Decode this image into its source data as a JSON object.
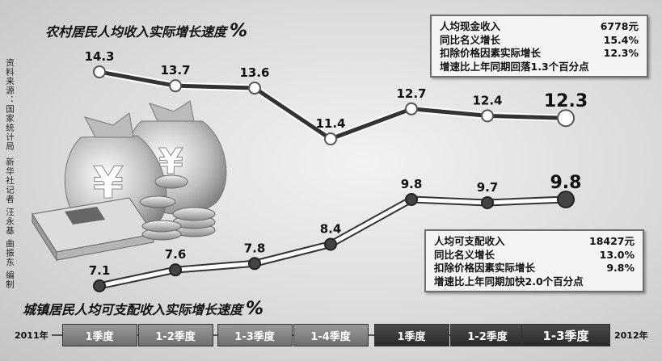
{
  "rural": {
    "title": "农村居民人均收入实际增长速度",
    "unit": "%",
    "info": [
      {
        "label": "人均现金收入",
        "value": "6778元"
      },
      {
        "label": "同比名义增长",
        "value": "15.4%"
      },
      {
        "label": "扣除价格因素实际增长",
        "value": "12.3%"
      },
      {
        "label": "增速比上年同期回落1.3个百分点",
        "value": ""
      }
    ]
  },
  "urban": {
    "title": "城镇居民人均可支配收入实际增长速度",
    "unit": "%",
    "info": [
      {
        "label": "人均可支配收入",
        "value": "18427元"
      },
      {
        "label": "同比名义增长",
        "value": "13.0%"
      },
      {
        "label": "扣除价格因素实际增长",
        "value": "9.8%"
      },
      {
        "label": "增速比上年同期加快2.0个百分点",
        "value": ""
      }
    ]
  },
  "source_note": "资料来源：国家统计局",
  "credit_note": "新华社记者 汪永基 曲振东 编制",
  "timeline": {
    "start": "2011年",
    "end": "2012年"
  },
  "chart_data": {
    "type": "line",
    "categories": [
      "1季度",
      "1-2季度",
      "1-3季度",
      "1-4季度",
      "1季度",
      "1-2季度",
      "1-3季度"
    ],
    "series": [
      {
        "name": "农村居民人均收入实际增长速度",
        "values": [
          14.3,
          13.7,
          13.6,
          11.4,
          12.7,
          12.4,
          12.3
        ]
      },
      {
        "name": "城镇居民人均可支配收入实际增长速度",
        "values": [
          7.1,
          7.6,
          7.8,
          8.4,
          9.8,
          9.7,
          9.8
        ]
      }
    ],
    "ylabel": "%",
    "grid": false,
    "colors": {
      "rural_line": "#333333",
      "urban_line": "#ffffff",
      "urban_point": "#444444",
      "rural_point": "#ffffff"
    }
  }
}
